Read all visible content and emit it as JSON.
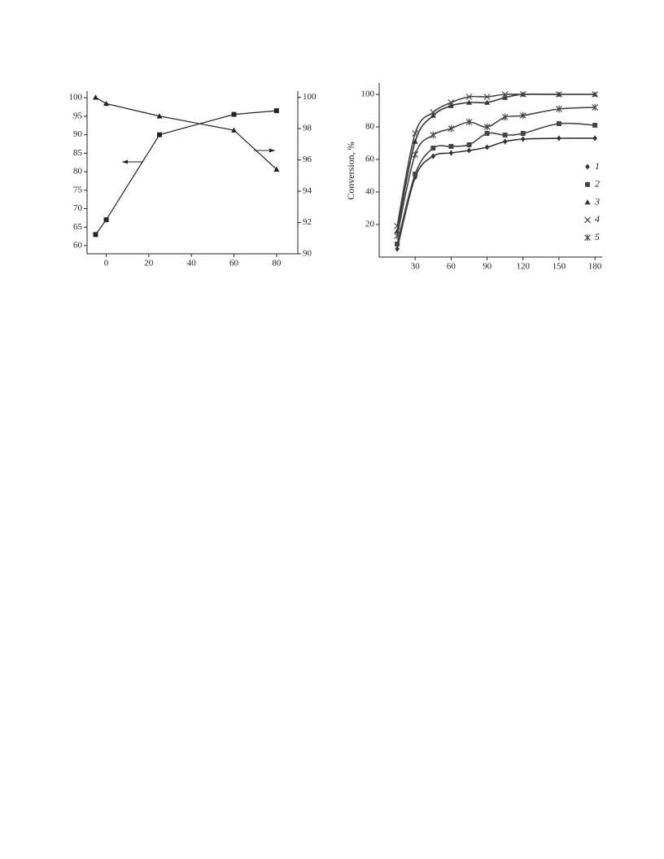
{
  "chart_data": [
    {
      "type": "line",
      "x": [
        -5,
        0,
        25,
        60,
        80
      ],
      "xlim": [
        -9,
        90
      ],
      "xticks": [
        0,
        20,
        40,
        60,
        80
      ],
      "ylim": [
        57.8,
        101.8
      ],
      "yticks": [
        60,
        65,
        70,
        75,
        80,
        85,
        90,
        95,
        100
      ],
      "y2lim": [
        90,
        100.4
      ],
      "y2ticks": [
        90,
        92,
        94,
        96,
        98,
        100
      ],
      "smooth": false,
      "series": [
        {
          "color": "#222222",
          "marker": "square",
          "values": [
            63,
            67,
            90,
            95.5,
            96.5
          ]
        },
        {
          "color": "#222222",
          "marker": "triangle",
          "axis": "y2",
          "values": [
            100,
            99.6,
            98.8,
            97.9,
            95.4
          ]
        }
      ]
    },
    {
      "type": "line",
      "y_label": "Conversion, %",
      "x": [
        15,
        30,
        45,
        60,
        75,
        90,
        105,
        120,
        150,
        180
      ],
      "xlim": [
        0,
        186
      ],
      "xticks": [
        30,
        60,
        90,
        120,
        150,
        180
      ],
      "ylim": [
        0,
        107
      ],
      "yticks": [
        20,
        40,
        60,
        80,
        100
      ],
      "smooth": true,
      "series": [
        {
          "name": "1",
          "color": "#333333",
          "marker": "diamond",
          "values": [
            5,
            49,
            62,
            64,
            65.5,
            67.5,
            71,
            72.5,
            73,
            73
          ]
        },
        {
          "name": "2",
          "color": "#444444",
          "marker": "square",
          "values": [
            8,
            51,
            67,
            68,
            69,
            76,
            75,
            76,
            82,
            81
          ]
        },
        {
          "name": "3",
          "color": "#333333",
          "marker": "triangle",
          "values": [
            16,
            71,
            87,
            93,
            95,
            95,
            98,
            100,
            100,
            100
          ]
        },
        {
          "name": "4",
          "color": "#444444",
          "marker": "x",
          "values": [
            19,
            76,
            89,
            95,
            98.5,
            98.5,
            100,
            100,
            100,
            100
          ]
        },
        {
          "name": "5",
          "color": "#444444",
          "marker": "star",
          "values": [
            13,
            63,
            75,
            79,
            83,
            80,
            86,
            87,
            91,
            92
          ]
        }
      ]
    }
  ]
}
